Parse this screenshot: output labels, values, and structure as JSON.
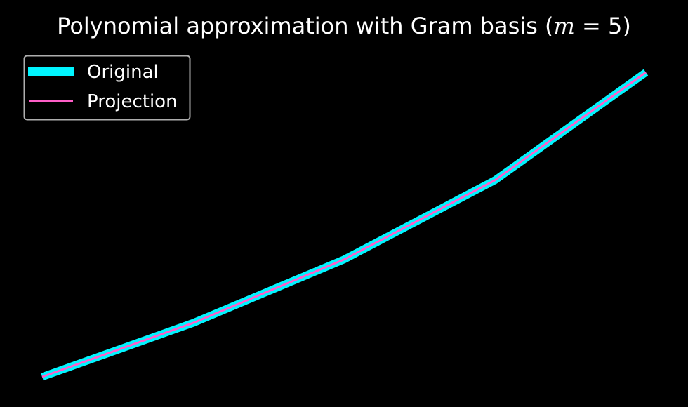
{
  "chart_data": {
    "type": "line",
    "title": {
      "prefix": "Polynomial approximation with Gram basis (",
      "math_var": "m",
      "math_op": " = ",
      "math_val": "5",
      "suffix": ")"
    },
    "xlabel": "",
    "ylabel": "",
    "x": [
      0,
      1,
      2,
      3,
      4
    ],
    "xlim": [
      0,
      4
    ],
    "ylim": [
      0,
      1
    ],
    "axes_visible": false,
    "grid": false,
    "legend_position": "upper-left",
    "series": [
      {
        "name": "Original",
        "values": [
          0.0,
          0.17,
          0.37,
          0.62,
          0.96
        ],
        "color": "#00f5ff"
      },
      {
        "name": "Projection",
        "values": [
          0.0,
          0.17,
          0.37,
          0.62,
          0.96
        ],
        "color": "#ff5fc8"
      }
    ],
    "background_color": "#000000",
    "text_color": "#ffffff",
    "legend_border_color": "#b8b8b8"
  }
}
